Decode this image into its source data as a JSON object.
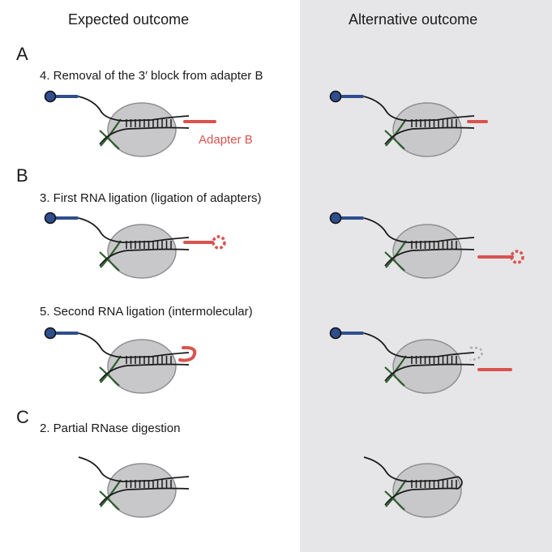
{
  "columns": {
    "left": "Expected outcome",
    "right": "Alternative outcome"
  },
  "sections": {
    "A": "A",
    "B": "B",
    "C": "C"
  },
  "steps": {
    "step_a": "4. Removal of the 3′ block from adapter B",
    "step_b1": "3. First RNA ligation (ligation of adapters)",
    "step_b2": "5. Second RNA ligation (intermolecular)",
    "step_c": "2. Partial RNase digestion"
  },
  "labels": {
    "adapter_b": "Adapter B"
  },
  "colors": {
    "adapter_a": "#2f4e8e",
    "adapter_b": "#d9534f",
    "ribosome": "#c8c8ca",
    "crosslink": "#2e5e2e",
    "rna": "#1a1a1a",
    "panel_bg": "#e6e6e8"
  }
}
